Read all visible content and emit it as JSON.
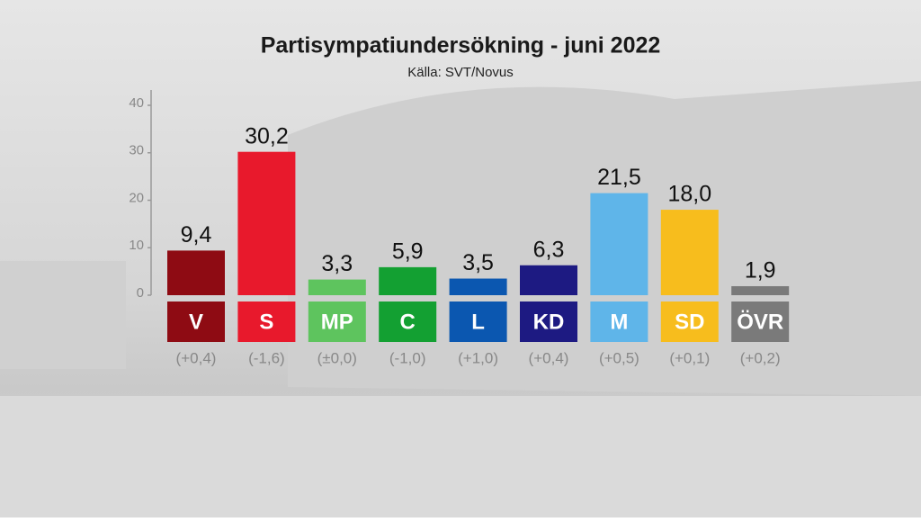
{
  "chart_data": {
    "type": "bar",
    "title": "Partisympatiundersökning - juni 2022",
    "subtitle": "Källa: SVT/Novus",
    "categories": [
      "V",
      "S",
      "MP",
      "C",
      "L",
      "KD",
      "M",
      "SD",
      "ÖVR"
    ],
    "values": [
      9.4,
      30.2,
      3.3,
      5.9,
      3.5,
      6.3,
      21.5,
      18.0,
      1.9
    ],
    "value_labels": [
      "9,4",
      "30,2",
      "3,3",
      "5,9",
      "3,5",
      "6,3",
      "21,5",
      "18,0",
      "1,9"
    ],
    "change_labels": [
      "(+0,4)",
      "(-1,6)",
      "(±0,0)",
      "(-1,0)",
      "(+1,0)",
      "(+0,4)",
      "(+0,5)",
      "(+0,1)",
      "(+0,2)"
    ],
    "colors": [
      "#8e0b13",
      "#e8192c",
      "#5ec45e",
      "#13a032",
      "#0b57b0",
      "#1d1a82",
      "#5fb5e9",
      "#f7bd1d",
      "#7a7a7a"
    ],
    "ylim": [
      0,
      40
    ],
    "yticks": [
      0,
      10,
      20,
      30,
      40
    ]
  }
}
